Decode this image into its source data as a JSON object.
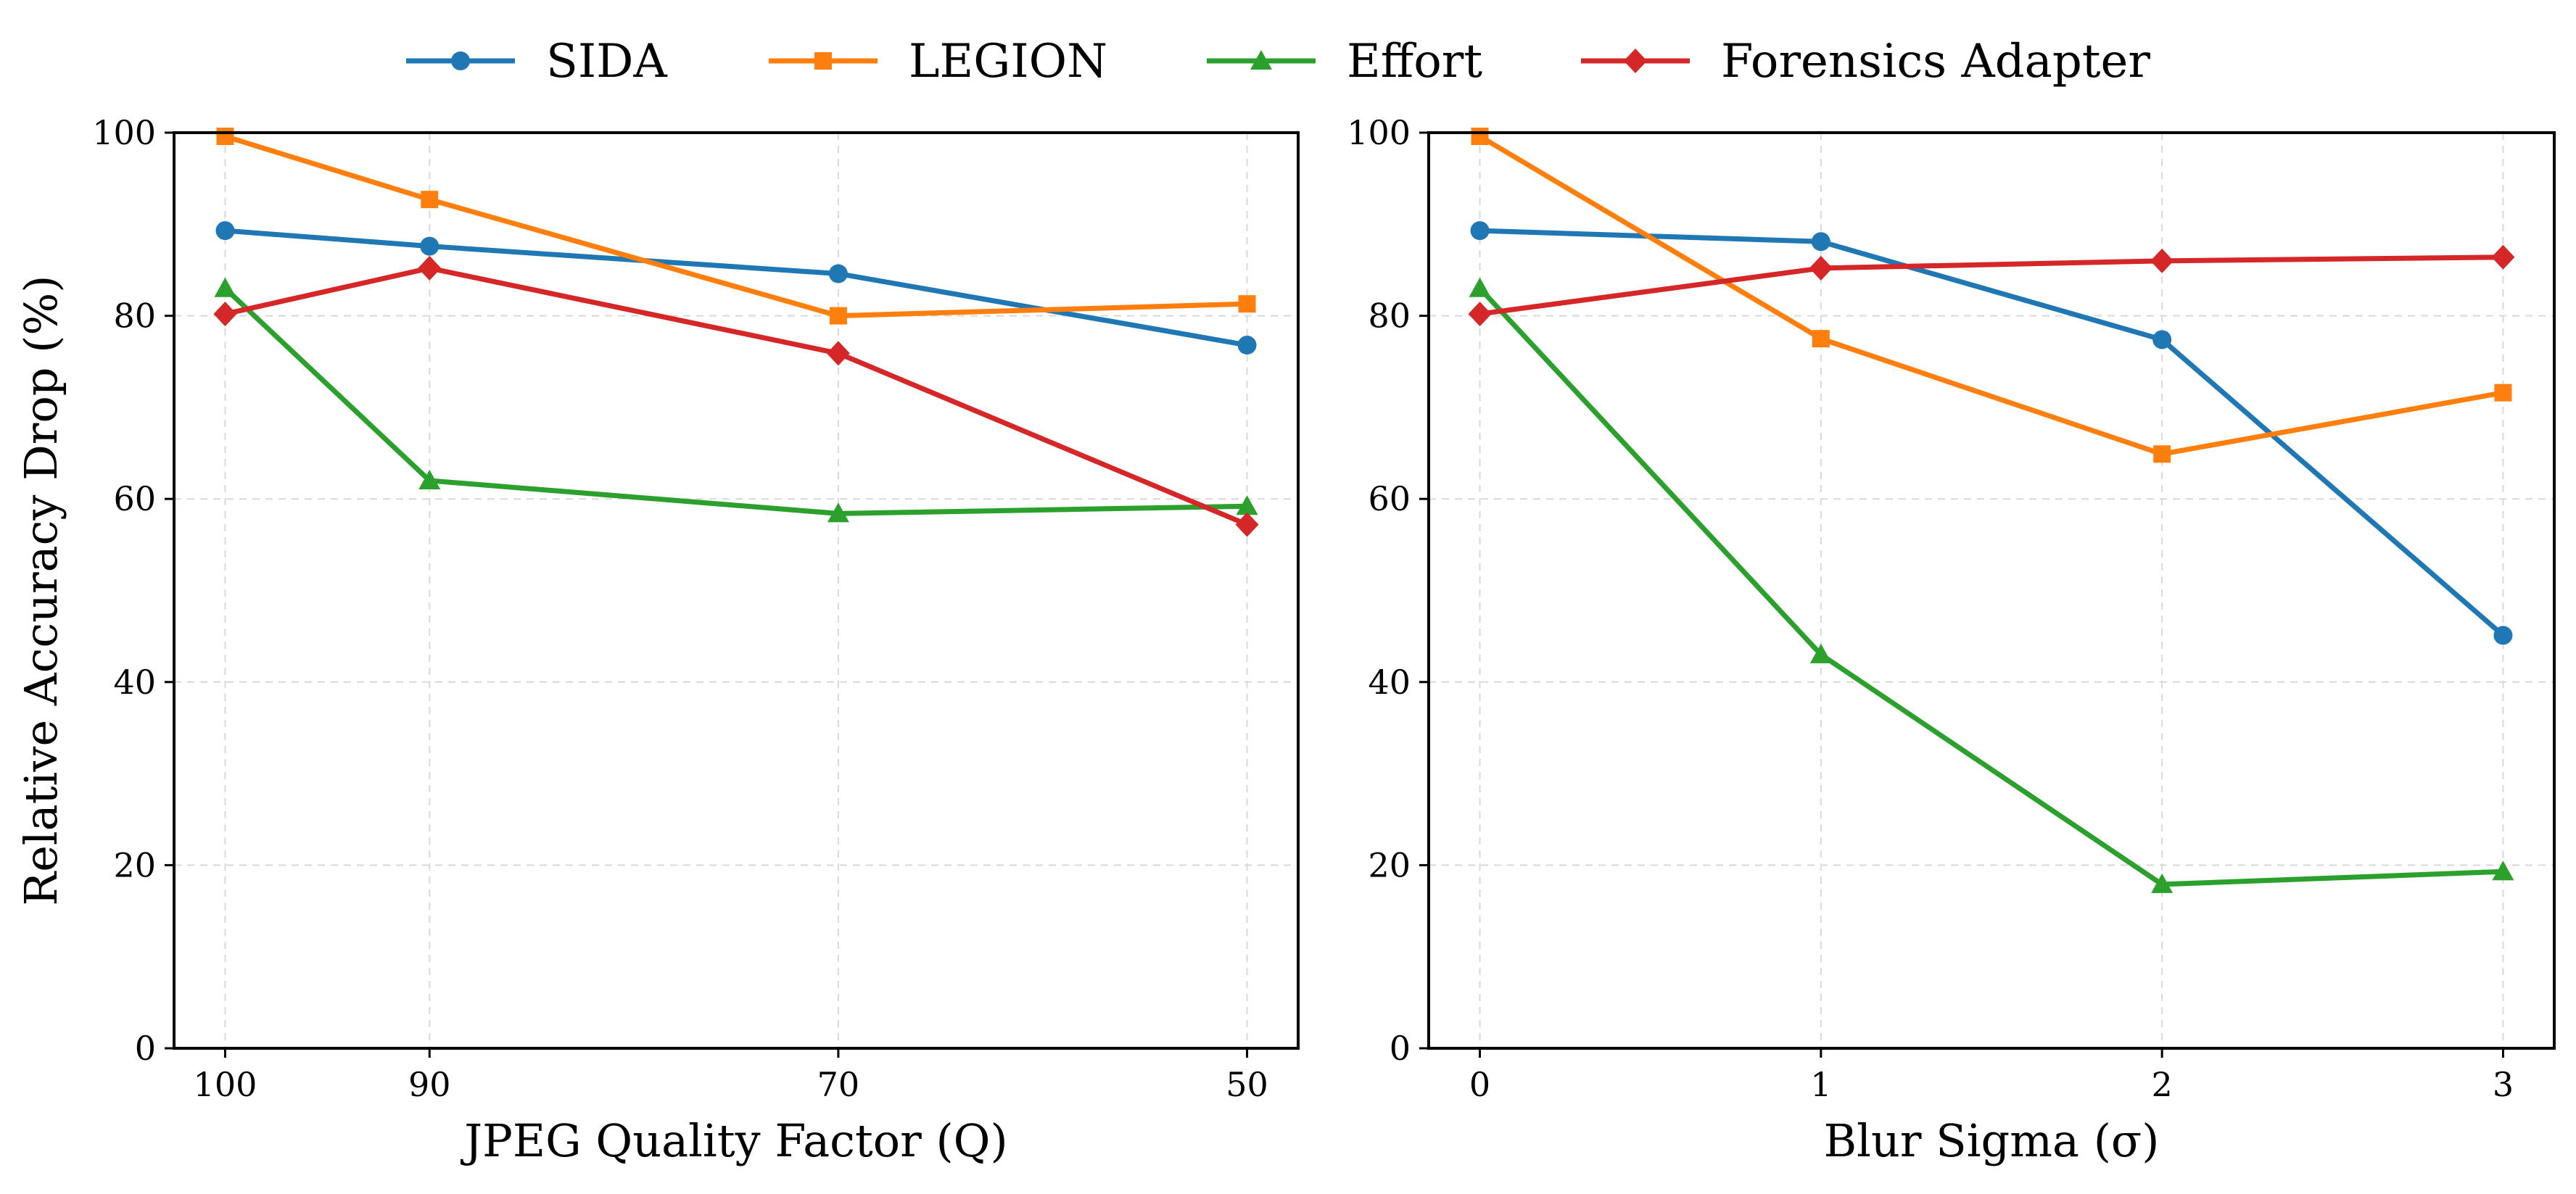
{
  "legend": [
    {
      "name": "SIDA",
      "color": "#1f77b4",
      "marker": "circle"
    },
    {
      "name": "LEGION",
      "color": "#ff7f0e",
      "marker": "square"
    },
    {
      "name": "Effort",
      "color": "#2ca02c",
      "marker": "triangle"
    },
    {
      "name": "Forensics Adapter",
      "color": "#d62728",
      "marker": "diamond"
    }
  ],
  "chart_data": [
    {
      "type": "line",
      "xlabel": "JPEG Quality Factor (Q)",
      "ylabel": "Relative Accuracy Drop (%)",
      "x": [
        100,
        90,
        70,
        50
      ],
      "x_tick_labels": [
        "100",
        "90",
        "70",
        "50"
      ],
      "xlim": [
        102.5,
        47.5
      ],
      "ylim": [
        0,
        100
      ],
      "y_ticks": [
        0,
        20,
        40,
        60,
        80,
        100
      ],
      "y_tick_labels": [
        "0",
        "20",
        "40",
        "60",
        "80",
        "100"
      ],
      "grid": true,
      "series": [
        {
          "name": "SIDA",
          "values": [
            89.3,
            87.6,
            84.6,
            76.8
          ]
        },
        {
          "name": "LEGION",
          "values": [
            99.6,
            92.7,
            80.0,
            81.3
          ]
        },
        {
          "name": "Effort",
          "values": [
            83.0,
            62.0,
            58.4,
            59.2
          ]
        },
        {
          "name": "Forensics Adapter",
          "values": [
            80.2,
            85.2,
            75.9,
            57.2
          ]
        }
      ]
    },
    {
      "type": "line",
      "xlabel": "Blur Sigma (σ)",
      "ylabel": "",
      "x": [
        0,
        1,
        2,
        3
      ],
      "x_tick_labels": [
        "0",
        "1",
        "2",
        "3"
      ],
      "xlim": [
        -0.15,
        3.15
      ],
      "ylim": [
        0,
        100
      ],
      "y_ticks": [
        0,
        20,
        40,
        60,
        80,
        100
      ],
      "y_tick_labels": [
        "0",
        "20",
        "40",
        "60",
        "80",
        "100"
      ],
      "grid": true,
      "series": [
        {
          "name": "SIDA",
          "values": [
            89.3,
            88.1,
            77.4,
            45.1
          ]
        },
        {
          "name": "LEGION",
          "values": [
            99.6,
            77.5,
            64.9,
            71.6
          ]
        },
        {
          "name": "Effort",
          "values": [
            83.0,
            43.0,
            17.9,
            19.3
          ]
        },
        {
          "name": "Forensics Adapter",
          "values": [
            80.2,
            85.2,
            86.0,
            86.4
          ]
        }
      ]
    }
  ]
}
